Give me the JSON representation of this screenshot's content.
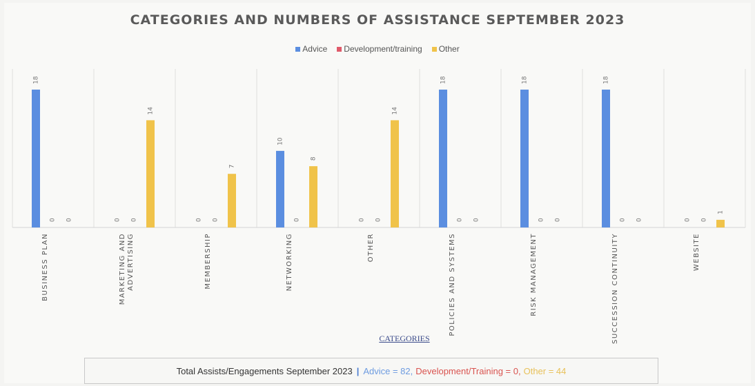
{
  "chart_data": {
    "type": "bar",
    "title": "CATEGORIES AND NUMBERS OF ASSISTANCE SEPTEMBER 2023",
    "xlabel": "CATEGORIES",
    "ylabel": "",
    "ylim": [
      0,
      20
    ],
    "grid": "vertical separators",
    "legend": "top-center",
    "categories": [
      "BUSINESS PLAN",
      "MARKETING AND ADVERTISING",
      "MEMBERSHIP",
      "NETWORKING",
      "OTHER",
      "POLICIES AND SYSTEMS",
      "RISK MANAGEMENT",
      "SUCCESSION CONTINUITY",
      "WEBSITE"
    ],
    "category_lines": [
      [
        "BUSINESS PLAN"
      ],
      [
        "MARKETING AND",
        "ADVERTISING"
      ],
      [
        "MEMBERSHIP"
      ],
      [
        "NETWORKING"
      ],
      [
        "OTHER"
      ],
      [
        "POLICIES AND SYSTEMS"
      ],
      [
        "RISK MANAGEMENT"
      ],
      [
        "SUCCESSION CONTINUITY"
      ],
      [
        "WEBSITE"
      ]
    ],
    "series": [
      {
        "name": "Advice",
        "color": "#5b8ee0",
        "values": [
          18,
          0,
          0,
          10,
          0,
          18,
          18,
          18,
          0
        ]
      },
      {
        "name": "Development/training",
        "color": "#e05a6a",
        "values": [
          0,
          0,
          0,
          0,
          0,
          0,
          0,
          0,
          0
        ]
      },
      {
        "name": "Other",
        "color": "#f0c34a",
        "values": [
          0,
          14,
          7,
          8,
          14,
          0,
          0,
          0,
          1
        ]
      }
    ]
  },
  "summary": {
    "label": "Total Assists/Engagements September 2023",
    "separator": "|",
    "advice": "Advice = 82,",
    "development": "Development/Training = 0,",
    "other": "Other = 44"
  }
}
